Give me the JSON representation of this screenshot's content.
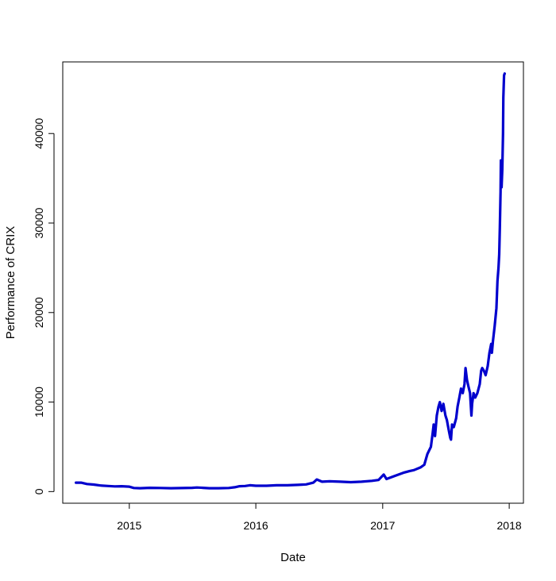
{
  "chart_data": {
    "type": "line",
    "title": "",
    "xlabel": "Date",
    "ylabel": "Performance of CRIX",
    "x_tick_labels": [
      "2015",
      "2016",
      "2017",
      "2018"
    ],
    "y_tick_labels": [
      "0",
      "10000",
      "20000",
      "30000",
      "40000"
    ],
    "x_ticks": [
      "2015-01-01",
      "2016-01-01",
      "2017-01-01",
      "2018-01-01"
    ],
    "y_ticks": [
      0,
      10000,
      20000,
      30000,
      40000
    ],
    "xlim": [
      "2014-06-23",
      "2018-02-11"
    ],
    "ylim": [
      -1300,
      48000
    ],
    "grid": false,
    "legend": "none",
    "line_color": "#0000CD",
    "series": [
      {
        "x": [
          "2014-07-31",
          "2014-08-15",
          "2014-09-01",
          "2014-09-20",
          "2014-10-10",
          "2014-11-01",
          "2014-11-20",
          "2014-12-10",
          "2014-12-31",
          "2015-01-14",
          "2015-02-01",
          "2015-03-01",
          "2015-04-01",
          "2015-05-01",
          "2015-06-01",
          "2015-07-01",
          "2015-07-15",
          "2015-08-01",
          "2015-08-20",
          "2015-09-15",
          "2015-10-15",
          "2015-11-01",
          "2015-11-15",
          "2015-12-01",
          "2015-12-15",
          "2016-01-01",
          "2016-02-01",
          "2016-03-01",
          "2016-04-01",
          "2016-05-01",
          "2016-05-25",
          "2016-06-15",
          "2016-06-25",
          "2016-07-10",
          "2016-08-01",
          "2016-09-01",
          "2016-10-01",
          "2016-11-01",
          "2016-12-01",
          "2016-12-20",
          "2017-01-04",
          "2017-01-12",
          "2017-02-01",
          "2017-03-01",
          "2017-03-20",
          "2017-04-01",
          "2017-04-20",
          "2017-05-01",
          "2017-05-10",
          "2017-05-20",
          "2017-05-25",
          "2017-05-28",
          "2017-06-01",
          "2017-06-06",
          "2017-06-11",
          "2017-06-15",
          "2017-06-20",
          "2017-06-25",
          "2017-07-01",
          "2017-07-05",
          "2017-07-10",
          "2017-07-15",
          "2017-07-17",
          "2017-07-20",
          "2017-07-25",
          "2017-08-01",
          "2017-08-05",
          "2017-08-10",
          "2017-08-15",
          "2017-08-20",
          "2017-08-25",
          "2017-08-28",
          "2017-09-01",
          "2017-09-05",
          "2017-09-10",
          "2017-09-14",
          "2017-09-16",
          "2017-09-20",
          "2017-09-25",
          "2017-10-01",
          "2017-10-08",
          "2017-10-12",
          "2017-10-15",
          "2017-10-20",
          "2017-10-25",
          "2017-10-31",
          "2017-11-05",
          "2017-11-10",
          "2017-11-12",
          "2017-11-15",
          "2017-11-20",
          "2017-11-25",
          "2017-11-28",
          "2017-12-01",
          "2017-12-03",
          "2017-12-05",
          "2017-12-07",
          "2017-12-08",
          "2017-12-10",
          "2017-12-12",
          "2017-12-14",
          "2017-12-15",
          "2017-12-17",
          "2017-12-19"
        ],
        "values": [
          1000,
          1000,
          850,
          780,
          680,
          620,
          580,
          600,
          550,
          400,
          380,
          420,
          400,
          380,
          390,
          420,
          460,
          420,
          380,
          380,
          400,
          480,
          600,
          620,
          700,
          650,
          650,
          700,
          700,
          750,
          800,
          1000,
          1350,
          1100,
          1150,
          1100,
          1050,
          1100,
          1200,
          1300,
          1900,
          1400,
          1700,
          2100,
          2300,
          2400,
          2700,
          3000,
          4200,
          5000,
          6500,
          7500,
          6200,
          8500,
          9500,
          10000,
          9000,
          9800,
          8500,
          8000,
          7000,
          6000,
          5800,
          7500,
          7200,
          8200,
          9500,
          10500,
          11500,
          11000,
          12000,
          13800,
          12500,
          11800,
          11000,
          8500,
          9800,
          11000,
          10500,
          11000,
          12000,
          13500,
          13800,
          13500,
          13000,
          14000,
          15500,
          16500,
          15500,
          16800,
          18500,
          20500,
          23500,
          25000,
          26500,
          29500,
          33500,
          37000,
          34000,
          36000,
          40000,
          44000,
          46500,
          46700
        ]
      }
    ]
  }
}
